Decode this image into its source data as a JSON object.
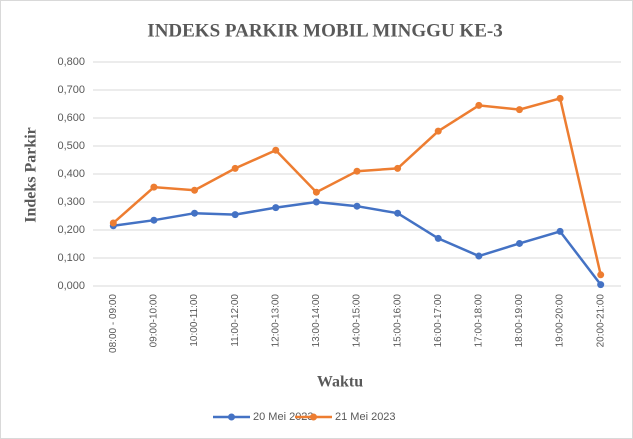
{
  "chart_data": {
    "type": "line",
    "title": "INDEKS PARKIR MOBIL MINGGU KE-3",
    "x_label": "Waktu",
    "y_label": "Indeks Parkir",
    "categories": [
      "08:00 - 09:00",
      "09:00-10:00",
      "10:00-11:00",
      "11:00-12:00",
      "12:00-13:00",
      "13:00-14:00",
      "14:00-15:00",
      "15:00-16:00",
      "16:00-17:00",
      "17:00-18:00",
      "18:00-19:00",
      "19:00-20:00",
      "20:00-21:00"
    ],
    "series": [
      {
        "name": "20 Mei 2023",
        "color": "#4472c4",
        "values": [
          0.215,
          0.235,
          0.26,
          0.255,
          0.28,
          0.3,
          0.285,
          0.26,
          0.17,
          0.107,
          0.152,
          0.195,
          0.005
        ]
      },
      {
        "name": "21 Mei 2023",
        "color": "#ed7d31",
        "values": [
          0.225,
          0.353,
          0.342,
          0.42,
          0.485,
          0.335,
          0.41,
          0.42,
          0.553,
          0.645,
          0.63,
          0.67,
          0.04
        ]
      }
    ],
    "ylim": [
      0,
      0.8
    ],
    "yticks": [
      {
        "value": 0,
        "label": "0,000"
      },
      {
        "value": 0.1,
        "label": "0,100"
      },
      {
        "value": 0.2,
        "label": "0,200"
      },
      {
        "value": 0.3,
        "label": "0,300"
      },
      {
        "value": 0.4,
        "label": "0,400"
      },
      {
        "value": 0.5,
        "label": "0,500"
      },
      {
        "value": 0.6,
        "label": "0,600"
      },
      {
        "value": 0.7,
        "label": "0,700"
      },
      {
        "value": 0.8,
        "label": "0,800"
      }
    ],
    "grid": true,
    "legend": "bottom"
  }
}
